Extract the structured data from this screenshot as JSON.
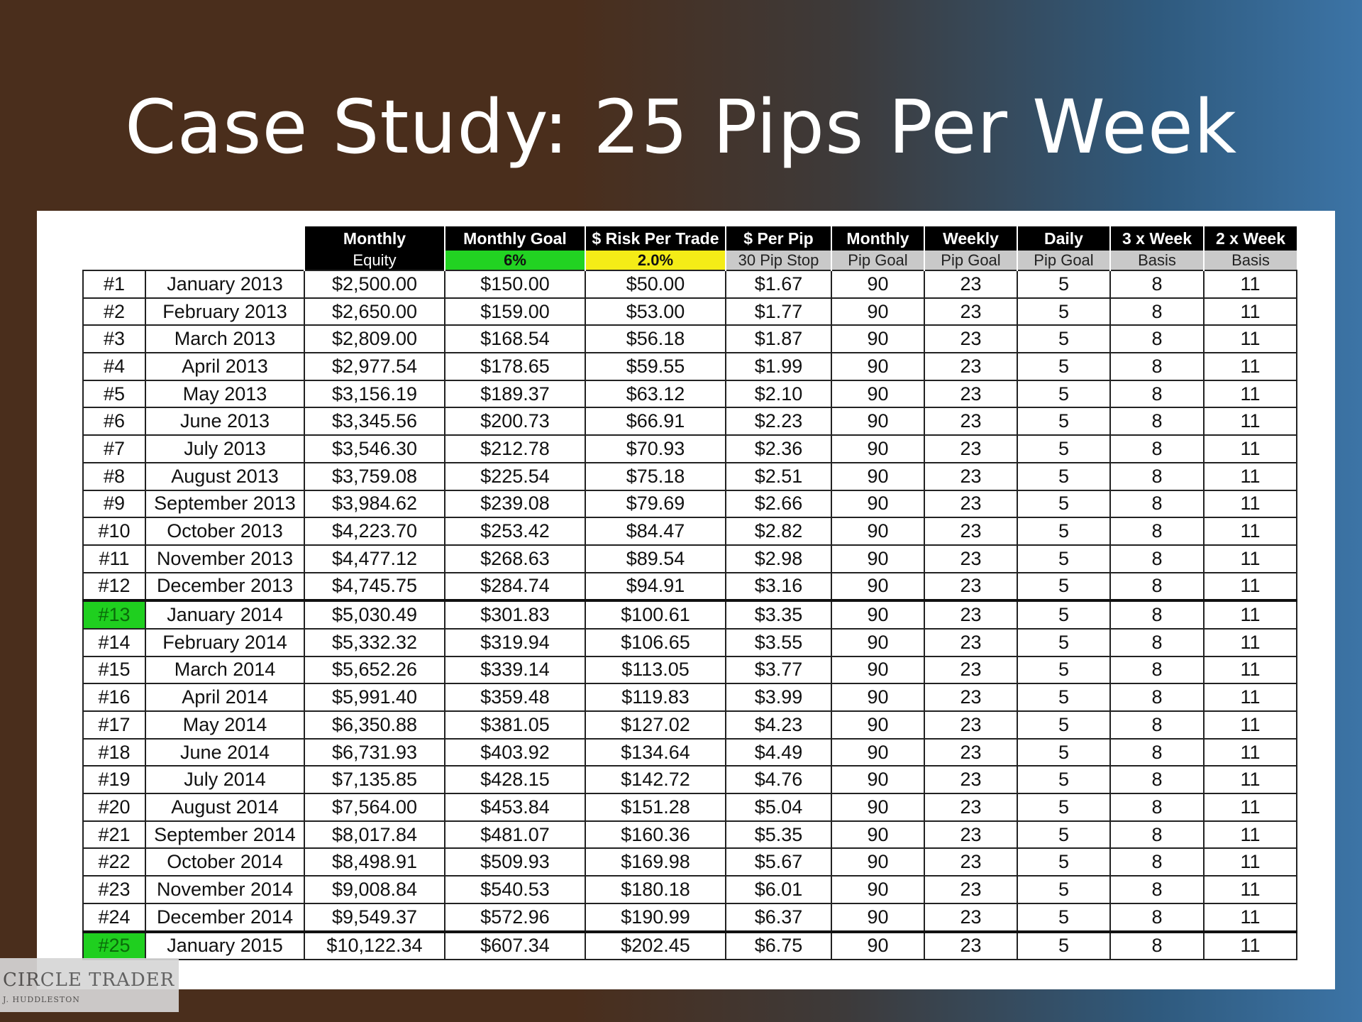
{
  "title": "Case Study: 25 Pips Per Week",
  "table": {
    "header_top": [
      "Monthly",
      "Monthly Goal",
      "$ Risk Per Trade",
      "$ Per Pip",
      "Monthly",
      "Weekly",
      "Daily",
      "3 x Week",
      "2 x Week"
    ],
    "header_sub": [
      "Equity",
      "6%",
      "2.0%",
      "30 Pip Stop",
      "Pip Goal",
      "Pip Goal",
      "Pip Goal",
      "Basis",
      "Basis"
    ],
    "highlight_color": "#22d322",
    "risk_color": "#f4ec17",
    "rows": [
      [
        "#1",
        "January 2013",
        "$2,500.00",
        "$150.00",
        "$50.00",
        "$1.67",
        "90",
        "23",
        "5",
        "8",
        "11"
      ],
      [
        "#2",
        "February 2013",
        "$2,650.00",
        "$159.00",
        "$53.00",
        "$1.77",
        "90",
        "23",
        "5",
        "8",
        "11"
      ],
      [
        "#3",
        "March 2013",
        "$2,809.00",
        "$168.54",
        "$56.18",
        "$1.87",
        "90",
        "23",
        "5",
        "8",
        "11"
      ],
      [
        "#4",
        "April 2013",
        "$2,977.54",
        "$178.65",
        "$59.55",
        "$1.99",
        "90",
        "23",
        "5",
        "8",
        "11"
      ],
      [
        "#5",
        "May 2013",
        "$3,156.19",
        "$189.37",
        "$63.12",
        "$2.10",
        "90",
        "23",
        "5",
        "8",
        "11"
      ],
      [
        "#6",
        "June 2013",
        "$3,345.56",
        "$200.73",
        "$66.91",
        "$2.23",
        "90",
        "23",
        "5",
        "8",
        "11"
      ],
      [
        "#7",
        "July 2013",
        "$3,546.30",
        "$212.78",
        "$70.93",
        "$2.36",
        "90",
        "23",
        "5",
        "8",
        "11"
      ],
      [
        "#8",
        "August 2013",
        "$3,759.08",
        "$225.54",
        "$75.18",
        "$2.51",
        "90",
        "23",
        "5",
        "8",
        "11"
      ],
      [
        "#9",
        "September 2013",
        "$3,984.62",
        "$239.08",
        "$79.69",
        "$2.66",
        "90",
        "23",
        "5",
        "8",
        "11"
      ],
      [
        "#10",
        "October 2013",
        "$4,223.70",
        "$253.42",
        "$84.47",
        "$2.82",
        "90",
        "23",
        "5",
        "8",
        "11"
      ],
      [
        "#11",
        "November 2013",
        "$4,477.12",
        "$268.63",
        "$89.54",
        "$2.98",
        "90",
        "23",
        "5",
        "8",
        "11"
      ],
      [
        "#12",
        "December 2013",
        "$4,745.75",
        "$284.74",
        "$94.91",
        "$3.16",
        "90",
        "23",
        "5",
        "8",
        "11"
      ],
      [
        "#13",
        "January 2014",
        "$5,030.49",
        "$301.83",
        "$100.61",
        "$3.35",
        "90",
        "23",
        "5",
        "8",
        "11"
      ],
      [
        "#14",
        "February 2014",
        "$5,332.32",
        "$319.94",
        "$106.65",
        "$3.55",
        "90",
        "23",
        "5",
        "8",
        "11"
      ],
      [
        "#15",
        "March 2014",
        "$5,652.26",
        "$339.14",
        "$113.05",
        "$3.77",
        "90",
        "23",
        "5",
        "8",
        "11"
      ],
      [
        "#16",
        "April 2014",
        "$5,991.40",
        "$359.48",
        "$119.83",
        "$3.99",
        "90",
        "23",
        "5",
        "8",
        "11"
      ],
      [
        "#17",
        "May 2014",
        "$6,350.88",
        "$381.05",
        "$127.02",
        "$4.23",
        "90",
        "23",
        "5",
        "8",
        "11"
      ],
      [
        "#18",
        "June 2014",
        "$6,731.93",
        "$403.92",
        "$134.64",
        "$4.49",
        "90",
        "23",
        "5",
        "8",
        "11"
      ],
      [
        "#19",
        "July 2014",
        "$7,135.85",
        "$428.15",
        "$142.72",
        "$4.76",
        "90",
        "23",
        "5",
        "8",
        "11"
      ],
      [
        "#20",
        "August 2014",
        "$7,564.00",
        "$453.84",
        "$151.28",
        "$5.04",
        "90",
        "23",
        "5",
        "8",
        "11"
      ],
      [
        "#21",
        "September 2014",
        "$8,017.84",
        "$481.07",
        "$160.36",
        "$5.35",
        "90",
        "23",
        "5",
        "8",
        "11"
      ],
      [
        "#22",
        "October 2014",
        "$8,498.91",
        "$509.93",
        "$169.98",
        "$5.67",
        "90",
        "23",
        "5",
        "8",
        "11"
      ],
      [
        "#23",
        "November 2014",
        "$9,008.84",
        "$540.53",
        "$180.18",
        "$6.01",
        "90",
        "23",
        "5",
        "8",
        "11"
      ],
      [
        "#24",
        "December 2014",
        "$9,549.37",
        "$572.96",
        "$190.99",
        "$6.37",
        "90",
        "23",
        "5",
        "8",
        "11"
      ],
      [
        "#25",
        "January 2015",
        "$10,122.34",
        "$607.34",
        "$202.45",
        "$6.75",
        "90",
        "23",
        "5",
        "8",
        "11"
      ]
    ],
    "highlighted_rows": [
      "#13",
      "#25"
    ]
  },
  "logo": {
    "name": "CIRCLE TRADER",
    "subtitle": "J. HUDDLESTON"
  }
}
